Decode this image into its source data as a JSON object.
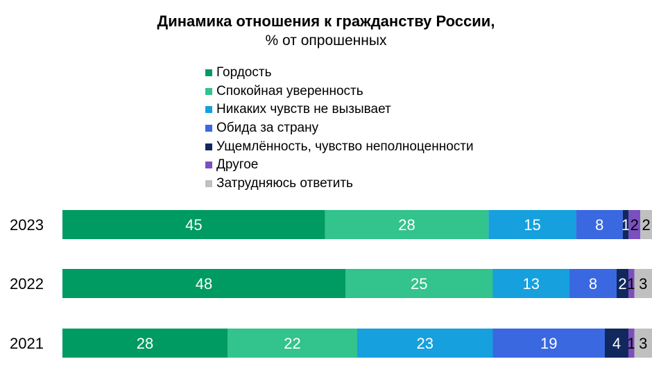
{
  "chart_data": {
    "type": "bar",
    "orientation": "horizontal",
    "stacked": true,
    "title": "Динамика отношения к гражданству России,",
    "subtitle": "% от опрошенных",
    "categories": [
      "2023",
      "2022",
      "2021"
    ],
    "series": [
      {
        "name": "Гордость",
        "color": "#009b62",
        "values": [
          45,
          48,
          28
        ]
      },
      {
        "name": "Спокойная уверенность",
        "color": "#33c38c",
        "values": [
          28,
          25,
          22
        ]
      },
      {
        "name": "Никаких чувств не вызывает",
        "color": "#16a0de",
        "values": [
          15,
          13,
          23
        ]
      },
      {
        "name": "Обида за страну",
        "color": "#3a68e0",
        "values": [
          8,
          8,
          19
        ]
      },
      {
        "name": "Ущемлённость, чувство неполноценности",
        "color": "#10285e",
        "values": [
          1,
          2,
          4
        ]
      },
      {
        "name": "Другое",
        "color": "#7b4fc0",
        "values": [
          2,
          1,
          1
        ]
      },
      {
        "name": "Затрудняюсь ответить",
        "color": "#c0c0c0",
        "values": [
          2,
          3,
          3
        ]
      }
    ],
    "labels": [
      [
        "45",
        "28",
        "15",
        "8",
        "1",
        "2",
        "2"
      ],
      [
        "48",
        "25",
        "13",
        "8",
        "2",
        "1",
        "3"
      ],
      [
        "28",
        "22",
        "23",
        "19",
        "4",
        "1",
        "3"
      ]
    ],
    "legend_position": "top",
    "grid": false
  }
}
